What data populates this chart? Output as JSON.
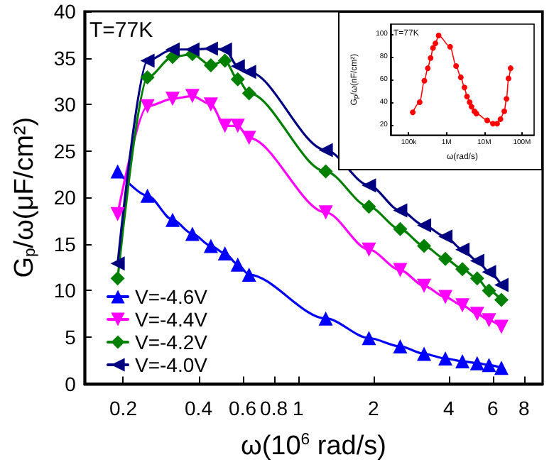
{
  "chart_data": [
    {
      "type": "line",
      "xlabel": "ω(10$^{6}$ rad/s)",
      "ylabel": "G$_{p}$/ω(μF/cm²)",
      "annotations": [
        "T=77K"
      ],
      "log": "x",
      "xlim": [
        0.14,
        9.5
      ],
      "xticks": [
        0.2,
        0.4,
        0.6,
        0.8,
        1,
        2,
        4,
        6,
        8
      ],
      "ylim": [
        0,
        40
      ],
      "yticks": [
        0,
        5,
        10,
        15,
        20,
        25,
        30,
        35,
        40
      ],
      "legend": "bottom left",
      "grid": false,
      "line_style": "solid",
      "series": [
        {
          "name": "V=-4.6V",
          "color": "#0000ff",
          "marker": "triangle",
          "x": [
            0.19,
            0.25,
            0.315,
            0.378,
            0.448,
            0.51,
            0.574,
            0.637,
            1.29,
            1.92,
            2.56,
            3.19,
            3.88,
            4.54,
            5.2,
            5.8,
            6.5
          ],
          "values": [
            22.8,
            20.2,
            17.6,
            16.1,
            14.8,
            14.0,
            12.8,
            11.7,
            7.0,
            4.9,
            4.0,
            3.2,
            2.7,
            2.4,
            2.2,
            2.0,
            1.7
          ]
        },
        {
          "name": "V=-4.4V",
          "color": "#ff00ff",
          "marker": "triangle-down",
          "x": [
            0.19,
            0.25,
            0.315,
            0.378,
            0.448,
            0.51,
            0.574,
            0.637,
            1.29,
            1.92,
            2.56,
            3.19,
            3.88,
            4.54,
            5.2,
            5.8,
            6.5
          ],
          "values": [
            18.2,
            29.8,
            30.6,
            30.9,
            30.0,
            27.7,
            27.7,
            26.4,
            18.4,
            14.4,
            12.2,
            10.5,
            9.3,
            8.4,
            7.5,
            6.8,
            6.1
          ]
        },
        {
          "name": "V=-4.2V",
          "color": "#008000",
          "marker": "diamond",
          "x": [
            0.19,
            0.25,
            0.315,
            0.378,
            0.448,
            0.51,
            0.574,
            0.637,
            1.29,
            1.92,
            2.56,
            3.19,
            3.88,
            4.54,
            5.2,
            5.8,
            6.5
          ],
          "values": [
            11.3,
            32.9,
            35.1,
            35.4,
            34.2,
            34.7,
            32.7,
            31.2,
            22.8,
            19.0,
            16.6,
            14.8,
            13.4,
            12.3,
            11.3,
            10.0,
            9.0
          ]
        },
        {
          "name": "V=-4.0V",
          "color": "#000080",
          "marker": "triangle-left",
          "x": [
            0.19,
            0.25,
            0.315,
            0.378,
            0.448,
            0.51,
            0.574,
            0.637,
            1.29,
            1.92,
            2.56,
            3.19,
            3.88,
            4.54,
            5.2,
            5.8,
            6.5
          ],
          "values": [
            12.9,
            34.7,
            35.9,
            35.9,
            36.0,
            35.9,
            34.1,
            33.5,
            25.1,
            21.3,
            18.6,
            17.0,
            15.8,
            14.4,
            13.2,
            12.0,
            10.6
          ]
        }
      ]
    },
    {
      "type": "line",
      "xlabel": "ω(rad/s)",
      "ylabel": "G$_{p}$/ω(nF/cm²)",
      "annotations": [
        "T=77K"
      ],
      "log": "x",
      "xlim": [
        33000,
        210000000
      ],
      "xticks": [
        {
          "value": 100000,
          "label": "100k"
        },
        {
          "value": 1000000,
          "label": "1M"
        },
        {
          "value": 10000000,
          "label": "10M"
        },
        {
          "value": 100000000,
          "label": "100M"
        }
      ],
      "ylim": [
        11,
        109
      ],
      "yticks": [
        20,
        40,
        60,
        80,
        100
      ],
      "grid": false,
      "marker": "circle",
      "line_style": "solid",
      "series": [
        {
          "color": "#ff0000",
          "x": [
            128000,
            195000,
            260000,
            320000,
            380000,
            440000,
            510000,
            620000,
            1250000,
            1800000,
            2400000,
            3000000,
            3500000,
            4100000,
            4600000,
            5500000,
            6200000,
            12000000,
            17000000,
            22000000,
            27000000,
            34000000,
            39000000,
            44000000,
            50000000
          ],
          "values": [
            31,
            40,
            59,
            70,
            79,
            88,
            92,
            99,
            89,
            72,
            62,
            53,
            45,
            40,
            36,
            32,
            30,
            24,
            21,
            21,
            25,
            32,
            43,
            61,
            70
          ]
        }
      ]
    }
  ]
}
